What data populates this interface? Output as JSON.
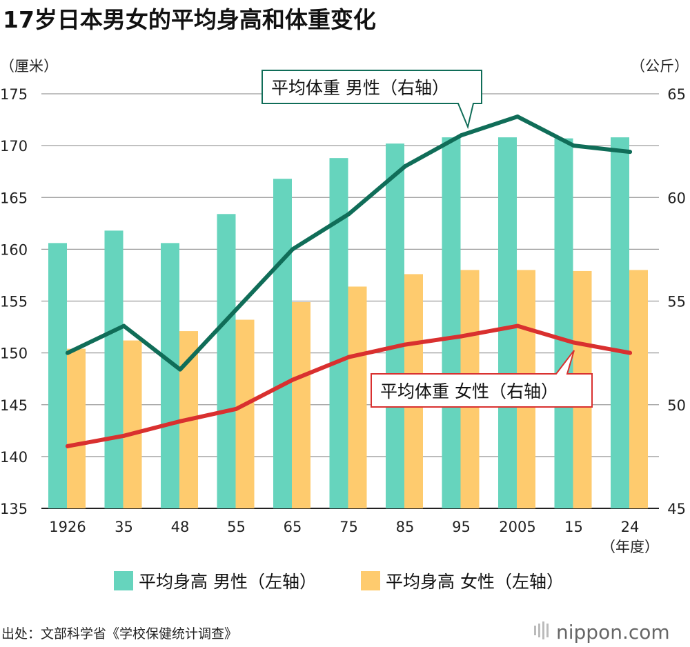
{
  "chart_data": {
    "type": "bar+line",
    "title": "17岁日本男女的平均身高和体重变化",
    "y_left_label": "（厘米）",
    "y_right_label": "（公斤）",
    "x_unit_label": "（年度）",
    "categories": [
      "1926",
      "35",
      "48",
      "55",
      "65",
      "75",
      "85",
      "95",
      "2005",
      "15",
      "24"
    ],
    "ylim_left": [
      135,
      175
    ],
    "yticks_left": [
      135,
      140,
      145,
      150,
      155,
      160,
      165,
      170,
      175
    ],
    "ylim_right": [
      45,
      65
    ],
    "yticks_right": [
      45,
      50,
      55,
      60,
      65
    ],
    "grid": true,
    "series": [
      {
        "name": "平均身高 男性（左轴）",
        "type": "bar",
        "axis": "left",
        "color": "#66d4bd",
        "values": [
          160.6,
          161.8,
          160.6,
          163.4,
          166.8,
          168.8,
          170.2,
          170.8,
          170.8,
          170.7,
          170.8
        ]
      },
      {
        "name": "平均身高 女性（左轴）",
        "type": "bar",
        "axis": "left",
        "color": "#fecb6e",
        "values": [
          150.4,
          151.2,
          152.1,
          153.2,
          154.9,
          156.4,
          157.6,
          158.0,
          158.0,
          157.9,
          158.0
        ]
      },
      {
        "name": "平均体重 男性（右轴）",
        "type": "line",
        "axis": "right",
        "color": "#106d58",
        "values": [
          52.5,
          53.8,
          51.7,
          54.6,
          57.5,
          59.2,
          61.5,
          63.0,
          63.9,
          62.5,
          62.2
        ]
      },
      {
        "name": "平均体重 女性（右轴）",
        "type": "line",
        "axis": "right",
        "color": "#d9302f",
        "values": [
          48.0,
          48.5,
          49.2,
          49.8,
          51.2,
          52.3,
          52.9,
          53.3,
          53.8,
          53.0,
          52.5
        ]
      }
    ]
  },
  "source": "出处：文部科学省《学校保健统计调查》",
  "logo": "nippon.com"
}
